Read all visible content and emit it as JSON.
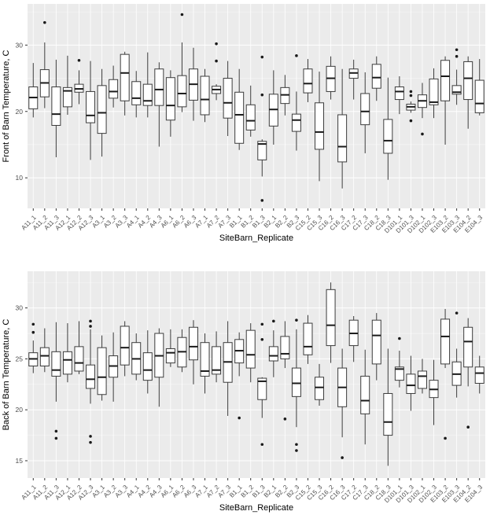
{
  "colors": {
    "panel_bg": "#EBEBEB",
    "grid_major": "#FFFFFF",
    "grid_minor": "#F7F7F7",
    "box_stroke": "#3C3C3C",
    "box_fill": "#FFFFFF",
    "median": "#1A1A1A",
    "outlier": "#1A1A1A",
    "axis_text": "#4D4D4D",
    "axis_title": "#000000",
    "tick_mark": "#333333"
  },
  "chart_data": [
    {
      "type": "boxplot",
      "id": "chart-front",
      "ylabel": "Front of Barn Temperature, C",
      "xlabel": "SiteBarn_Replicate",
      "yticks": [
        10,
        20,
        30
      ],
      "yticks_minor": [
        15,
        25,
        35
      ],
      "ylim": [
        5.4,
        36.2
      ],
      "grid": true,
      "boxes": [
        {
          "label": "A11_1",
          "lo": 19.1,
          "q1": 20.4,
          "med": 22.1,
          "q3": 23.7,
          "hi": 27.3,
          "out": []
        },
        {
          "label": "A11_2",
          "lo": 20.5,
          "q1": 22.2,
          "med": 24.3,
          "q3": 26.3,
          "hi": 30.4,
          "out": [
            33.4
          ]
        },
        {
          "label": "A11_3",
          "lo": 13.1,
          "q1": 17.9,
          "med": 19.6,
          "q3": 23.7,
          "hi": 27.8,
          "out": []
        },
        {
          "label": "A12_1",
          "lo": 19.5,
          "q1": 20.7,
          "med": 23.1,
          "q3": 23.6,
          "hi": 28.4,
          "out": []
        },
        {
          "label": "A12_2",
          "lo": 21.1,
          "q1": 22.9,
          "med": 23.4,
          "q3": 24.1,
          "hi": 26.2,
          "out": [
            27.7
          ]
        },
        {
          "label": "A12_3",
          "lo": 12.7,
          "q1": 18.3,
          "med": 19.4,
          "q3": 23.0,
          "hi": 27.6,
          "out": []
        },
        {
          "label": "A3_1",
          "lo": 13.2,
          "q1": 16.7,
          "med": 19.8,
          "q3": 23.9,
          "hi": 26.4,
          "out": []
        },
        {
          "label": "A3_2",
          "lo": 20.6,
          "q1": 22.0,
          "med": 23.0,
          "q3": 24.8,
          "hi": 26.9,
          "out": []
        },
        {
          "label": "A3_3",
          "lo": 19.4,
          "q1": 21.6,
          "med": 25.8,
          "q3": 28.6,
          "hi": 29.0,
          "out": []
        },
        {
          "label": "A4_1",
          "lo": 19.1,
          "q1": 21.0,
          "med": 22.0,
          "q3": 24.5,
          "hi": 26.1,
          "out": []
        },
        {
          "label": "A4_2",
          "lo": 19.1,
          "q1": 20.9,
          "med": 21.6,
          "q3": 24.1,
          "hi": 28.9,
          "out": []
        },
        {
          "label": "A4_3",
          "lo": 14.7,
          "q1": 20.9,
          "med": 23.3,
          "q3": 26.4,
          "hi": 27.4,
          "out": []
        },
        {
          "label": "A6_1",
          "lo": 16.2,
          "q1": 18.7,
          "med": 20.9,
          "q3": 25.1,
          "hi": 26.2,
          "out": []
        },
        {
          "label": "A6_2",
          "lo": 19.9,
          "q1": 20.7,
          "med": 22.7,
          "q3": 25.4,
          "hi": 30.4,
          "out": [
            34.6
          ]
        },
        {
          "label": "A6_3",
          "lo": 18.6,
          "q1": 21.7,
          "med": 24.1,
          "q3": 26.4,
          "hi": 29.6,
          "out": []
        },
        {
          "label": "A7_1",
          "lo": 18.4,
          "q1": 19.5,
          "med": 21.8,
          "q3": 25.3,
          "hi": 26.4,
          "out": []
        },
        {
          "label": "A7_2",
          "lo": 21.7,
          "q1": 22.7,
          "med": 23.3,
          "q3": 23.8,
          "hi": 24.1,
          "out": [
            30.2,
            27.6
          ]
        },
        {
          "label": "A7_3",
          "lo": 16.3,
          "q1": 19.0,
          "med": 21.3,
          "q3": 25.0,
          "hi": 27.6,
          "out": []
        },
        {
          "label": "B1_1",
          "lo": 14.2,
          "q1": 15.2,
          "med": 19.5,
          "q3": 22.9,
          "hi": 26.4,
          "out": []
        },
        {
          "label": "B1_2",
          "lo": 16.2,
          "q1": 17.2,
          "med": 18.6,
          "q3": 21.0,
          "hi": 23.9,
          "out": []
        },
        {
          "label": "B1_3",
          "lo": 10.2,
          "q1": 12.7,
          "med": 15.1,
          "q3": 15.5,
          "hi": 15.8,
          "out": [
            28.2,
            22.5,
            6.6
          ]
        },
        {
          "label": "B2_1",
          "lo": 15.0,
          "q1": 17.8,
          "med": 20.3,
          "q3": 22.6,
          "hi": 26.2,
          "out": []
        },
        {
          "label": "B2_2",
          "lo": 19.4,
          "q1": 21.2,
          "med": 22.5,
          "q3": 23.6,
          "hi": 25.5,
          "out": []
        },
        {
          "label": "B2_3",
          "lo": 14.1,
          "q1": 17.0,
          "med": 18.7,
          "q3": 19.6,
          "hi": 23.0,
          "out": [
            28.4
          ]
        },
        {
          "label": "C15_2",
          "lo": 21.4,
          "q1": 22.8,
          "med": 24.2,
          "q3": 26.4,
          "hi": 27.9,
          "out": []
        },
        {
          "label": "C15_3",
          "lo": 9.5,
          "q1": 14.3,
          "med": 16.9,
          "q3": 21.3,
          "hi": 26.0,
          "out": []
        },
        {
          "label": "C16_2",
          "lo": 21.8,
          "q1": 23.0,
          "med": 25.0,
          "q3": 26.8,
          "hi": 28.3,
          "out": []
        },
        {
          "label": "C16_3",
          "lo": 8.4,
          "q1": 12.4,
          "med": 14.7,
          "q3": 19.5,
          "hi": 26.4,
          "out": []
        },
        {
          "label": "C17_2",
          "lo": 21.8,
          "q1": 25.0,
          "med": 25.8,
          "q3": 26.4,
          "hi": 27.8,
          "out": []
        },
        {
          "label": "C17_3",
          "lo": 13.7,
          "q1": 18.0,
          "med": 20.0,
          "q3": 22.7,
          "hi": 25.9,
          "out": []
        },
        {
          "label": "C18_2",
          "lo": 21.6,
          "q1": 23.5,
          "med": 25.1,
          "q3": 27.1,
          "hi": 28.3,
          "out": []
        },
        {
          "label": "C18_3",
          "lo": 9.7,
          "q1": 13.7,
          "med": 15.6,
          "q3": 18.8,
          "hi": 25.1,
          "out": []
        },
        {
          "label": "D101_1",
          "lo": 19.6,
          "q1": 21.8,
          "med": 23.0,
          "q3": 23.7,
          "hi": 25.3,
          "out": []
        },
        {
          "label": "D101_3",
          "lo": 19.8,
          "q1": 20.2,
          "med": 20.7,
          "q3": 21.1,
          "hi": 21.5,
          "out": [
            23.0,
            22.4,
            18.6
          ]
        },
        {
          "label": "D102_1",
          "lo": 19.0,
          "q1": 20.6,
          "med": 21.6,
          "q3": 22.5,
          "hi": 24.3,
          "out": [
            16.6
          ]
        },
        {
          "label": "D102_3",
          "lo": 19.0,
          "q1": 21.0,
          "med": 21.4,
          "q3": 24.9,
          "hi": 26.5,
          "out": []
        },
        {
          "label": "E103_2",
          "lo": 15.0,
          "q1": 21.6,
          "med": 25.3,
          "q3": 27.7,
          "hi": 28.3,
          "out": []
        },
        {
          "label": "E103_3",
          "lo": 21.0,
          "q1": 22.6,
          "med": 22.9,
          "q3": 23.9,
          "hi": 26.3,
          "out": [
            29.3,
            28.3
          ]
        },
        {
          "label": "E104_2",
          "lo": 17.4,
          "q1": 21.8,
          "med": 25.0,
          "q3": 27.5,
          "hi": 28.3,
          "out": []
        },
        {
          "label": "E104_3",
          "lo": 19.4,
          "q1": 19.8,
          "med": 21.2,
          "q3": 24.7,
          "hi": 27.9,
          "out": []
        }
      ]
    },
    {
      "type": "boxplot",
      "id": "chart-back",
      "ylabel": "Back of Barn Temperature, C",
      "xlabel": "SiteBarn_Replicate",
      "yticks": [
        15,
        20,
        25,
        30
      ],
      "yticks_minor": [
        17.5,
        22.5,
        27.5,
        32.5
      ],
      "ylim": [
        13.3,
        33.6
      ],
      "grid": true,
      "boxes": [
        {
          "label": "A11_1",
          "lo": 23.6,
          "q1": 24.3,
          "med": 25.0,
          "q3": 25.6,
          "hi": 26.8,
          "out": [
            28.4,
            27.6
          ]
        },
        {
          "label": "A11_2",
          "lo": 23.7,
          "q1": 24.3,
          "med": 25.3,
          "q3": 26.1,
          "hi": 28.0,
          "out": []
        },
        {
          "label": "A11_3",
          "lo": 20.8,
          "q1": 23.3,
          "med": 23.9,
          "q3": 25.7,
          "hi": 28.6,
          "out": [
            17.9,
            17.2
          ]
        },
        {
          "label": "A12_1",
          "lo": 22.7,
          "q1": 23.5,
          "med": 24.9,
          "q3": 25.7,
          "hi": 28.5,
          "out": []
        },
        {
          "label": "A12_2",
          "lo": 23.5,
          "q1": 23.8,
          "med": 24.6,
          "q3": 26.2,
          "hi": 28.7,
          "out": []
        },
        {
          "label": "A12_3",
          "lo": 20.6,
          "q1": 22.1,
          "med": 23.0,
          "q3": 24.4,
          "hi": 27.9,
          "out": [
            28.7,
            28.2,
            17.4,
            16.8
          ]
        },
        {
          "label": "A3_1",
          "lo": 20.9,
          "q1": 21.5,
          "med": 23.2,
          "q3": 26.1,
          "hi": 27.3,
          "out": []
        },
        {
          "label": "A3_2",
          "lo": 20.8,
          "q1": 23.2,
          "med": 24.3,
          "q3": 25.3,
          "hi": 27.6,
          "out": []
        },
        {
          "label": "A3_3",
          "lo": 23.3,
          "q1": 24.4,
          "med": 26.1,
          "q3": 28.2,
          "hi": 28.7,
          "out": []
        },
        {
          "label": "A4_1",
          "lo": 22.9,
          "q1": 23.5,
          "med": 25.0,
          "q3": 26.6,
          "hi": 27.5,
          "out": []
        },
        {
          "label": "A4_2",
          "lo": 21.6,
          "q1": 22.9,
          "med": 23.9,
          "q3": 25.6,
          "hi": 27.8,
          "out": []
        },
        {
          "label": "A4_3",
          "lo": 20.3,
          "q1": 23.2,
          "med": 25.3,
          "q3": 27.5,
          "hi": 28.0,
          "out": []
        },
        {
          "label": "A6_1",
          "lo": 24.2,
          "q1": 24.6,
          "med": 25.6,
          "q3": 26.0,
          "hi": 27.9,
          "out": []
        },
        {
          "label": "A6_2",
          "lo": 23.7,
          "q1": 24.2,
          "med": 25.7,
          "q3": 27.1,
          "hi": 27.9,
          "out": []
        },
        {
          "label": "A6_3",
          "lo": 22.5,
          "q1": 24.9,
          "med": 26.2,
          "q3": 28.1,
          "hi": 28.8,
          "out": []
        },
        {
          "label": "A7_1",
          "lo": 21.6,
          "q1": 23.3,
          "med": 23.8,
          "q3": 26.6,
          "hi": 27.5,
          "out": []
        },
        {
          "label": "A7_2",
          "lo": 22.7,
          "q1": 23.5,
          "med": 23.9,
          "q3": 26.2,
          "hi": 27.7,
          "out": []
        },
        {
          "label": "A7_3",
          "lo": 19.4,
          "q1": 22.7,
          "med": 24.7,
          "q3": 26.6,
          "hi": 28.7,
          "out": []
        },
        {
          "label": "B1_1",
          "lo": 23.3,
          "q1": 24.6,
          "med": 25.8,
          "q3": 26.9,
          "hi": 27.6,
          "out": [
            19.2
          ]
        },
        {
          "label": "B1_2",
          "lo": 22.7,
          "q1": 24.1,
          "med": 25.4,
          "q3": 27.8,
          "hi": 28.5,
          "out": []
        },
        {
          "label": "B1_3",
          "lo": 19.2,
          "q1": 21.0,
          "med": 22.8,
          "q3": 23.1,
          "hi": 23.2,
          "out": [
            28.4,
            26.9,
            16.6
          ]
        },
        {
          "label": "B2_1",
          "lo": 23.2,
          "q1": 24.8,
          "med": 25.3,
          "q3": 26.2,
          "hi": 27.8,
          "out": [
            28.7
          ]
        },
        {
          "label": "B2_2",
          "lo": 24.1,
          "q1": 25.0,
          "med": 25.5,
          "q3": 27.2,
          "hi": 28.7,
          "out": [
            19.1
          ]
        },
        {
          "label": "B2_3",
          "lo": 18.3,
          "q1": 21.3,
          "med": 22.6,
          "q3": 24.1,
          "hi": 27.9,
          "out": [
            28.8,
            16.6,
            16.0
          ]
        },
        {
          "label": "C15_2",
          "lo": 24.5,
          "q1": 25.4,
          "med": 26.2,
          "q3": 28.5,
          "hi": 29.3,
          "out": []
        },
        {
          "label": "C15_3",
          "lo": 20.4,
          "q1": 21.0,
          "med": 22.2,
          "q3": 23.2,
          "hi": 24.5,
          "out": []
        },
        {
          "label": "C16_2",
          "lo": 24.6,
          "q1": 26.3,
          "med": 28.3,
          "q3": 31.8,
          "hi": 32.5,
          "out": []
        },
        {
          "label": "C16_3",
          "lo": 17.3,
          "q1": 20.3,
          "med": 22.2,
          "q3": 24.1,
          "hi": 26.0,
          "out": [
            15.3
          ]
        },
        {
          "label": "C17_2",
          "lo": 24.7,
          "q1": 26.3,
          "med": 27.5,
          "q3": 28.8,
          "hi": 29.2,
          "out": []
        },
        {
          "label": "C17_3",
          "lo": 16.6,
          "q1": 19.6,
          "med": 20.9,
          "q3": 23.3,
          "hi": 25.9,
          "out": []
        },
        {
          "label": "C18_2",
          "lo": 22.9,
          "q1": 24.5,
          "med": 27.3,
          "q3": 28.8,
          "hi": 29.5,
          "out": []
        },
        {
          "label": "C18_3",
          "lo": 14.5,
          "q1": 17.5,
          "med": 18.8,
          "q3": 21.6,
          "hi": 26.0,
          "out": []
        },
        {
          "label": "D101_1",
          "lo": 22.2,
          "q1": 22.9,
          "med": 24.0,
          "q3": 24.2,
          "hi": 25.8,
          "out": [
            27.0
          ]
        },
        {
          "label": "D101_3",
          "lo": 19.9,
          "q1": 21.6,
          "med": 22.4,
          "q3": 23.5,
          "hi": 25.3,
          "out": []
        },
        {
          "label": "D102_1",
          "lo": 21.6,
          "q1": 22.1,
          "med": 23.3,
          "q3": 23.8,
          "hi": 25.0,
          "out": []
        },
        {
          "label": "D102_3",
          "lo": 18.5,
          "q1": 21.2,
          "med": 22.0,
          "q3": 22.9,
          "hi": 24.9,
          "out": []
        },
        {
          "label": "E103_2",
          "lo": 24.1,
          "q1": 24.5,
          "med": 27.2,
          "q3": 28.9,
          "hi": 29.9,
          "out": [
            17.2
          ]
        },
        {
          "label": "E103_3",
          "lo": 21.2,
          "q1": 22.4,
          "med": 23.5,
          "q3": 24.7,
          "hi": 26.0,
          "out": [
            29.5
          ]
        },
        {
          "label": "E104_2",
          "lo": 22.3,
          "q1": 24.2,
          "med": 26.7,
          "q3": 28.1,
          "hi": 29.0,
          "out": [
            18.3
          ]
        },
        {
          "label": "E104_3",
          "lo": 21.6,
          "q1": 22.6,
          "med": 23.6,
          "q3": 24.2,
          "hi": 25.3,
          "out": []
        }
      ]
    }
  ]
}
